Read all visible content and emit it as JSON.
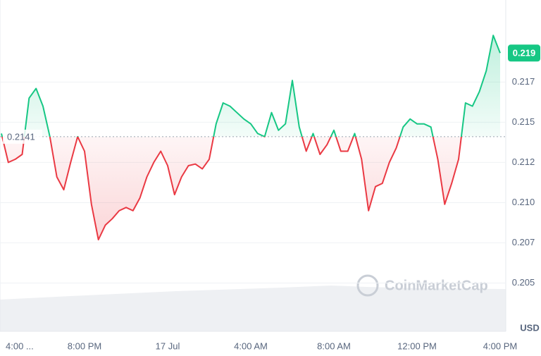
{
  "chart_data": {
    "type": "line",
    "categories": [
      "4:00 ...",
      null,
      null,
      null,
      null,
      null,
      null,
      null,
      null,
      null,
      null,
      null,
      "8:00 PM",
      null,
      null,
      null,
      null,
      null,
      null,
      null,
      null,
      null,
      null,
      null,
      "17 Jul",
      null,
      null,
      null,
      null,
      null,
      null,
      null,
      null,
      null,
      null,
      null,
      "4:00 AM",
      null,
      null,
      null,
      null,
      null,
      null,
      null,
      null,
      null,
      null,
      null,
      "8:00 AM",
      null,
      null,
      null,
      null,
      null,
      null,
      null,
      null,
      null,
      null,
      null,
      "12:00 PM",
      null,
      null,
      null,
      null,
      null,
      null,
      null,
      null,
      null,
      null,
      null,
      "4:00 PM"
    ],
    "values": [
      0.2143,
      0.2125,
      0.2127,
      0.213,
      0.2165,
      0.2171,
      0.216,
      0.2141,
      0.2116,
      0.2108,
      0.2125,
      0.2141,
      0.2132,
      0.2099,
      0.2077,
      0.2086,
      0.209,
      0.2095,
      0.2097,
      0.2095,
      0.2103,
      0.2116,
      0.2125,
      0.2132,
      0.2123,
      0.2105,
      0.2116,
      0.2123,
      0.2124,
      0.2121,
      0.2127,
      0.2149,
      0.2162,
      0.216,
      0.2156,
      0.2152,
      0.2149,
      0.2143,
      0.2141,
      0.2156,
      0.2145,
      0.2149,
      0.2176,
      0.2147,
      0.2132,
      0.2143,
      0.213,
      0.2136,
      0.2145,
      0.2132,
      0.2132,
      0.2143,
      0.2127,
      0.2095,
      0.211,
      0.2112,
      0.2125,
      0.2134,
      0.2147,
      0.2152,
      0.2149,
      0.2149,
      0.2147,
      0.2127,
      0.2099,
      0.2112,
      0.2127,
      0.2162,
      0.216,
      0.2169,
      0.2182,
      0.2204,
      0.2193
    ],
    "baseline": 0.2141,
    "current_label": "0.219",
    "up_color": "#16c784",
    "down_color": "#ea3943",
    "ylim": [
      0.202,
      0.2226
    ],
    "yticks": [
      0.205,
      {
        "value": 0.2075,
        "label": "0.207"
      },
      {
        "value": 0.21,
        "label": "0.210"
      },
      {
        "value": 0.2125,
        "label": "0.212"
      },
      {
        "value": 0.215,
        "label": "0.215"
      },
      {
        "value": 0.2175,
        "label": "0.217"
      }
    ],
    "y_unit": "USD",
    "watermark": "CoinMarketCap",
    "grid": true
  }
}
